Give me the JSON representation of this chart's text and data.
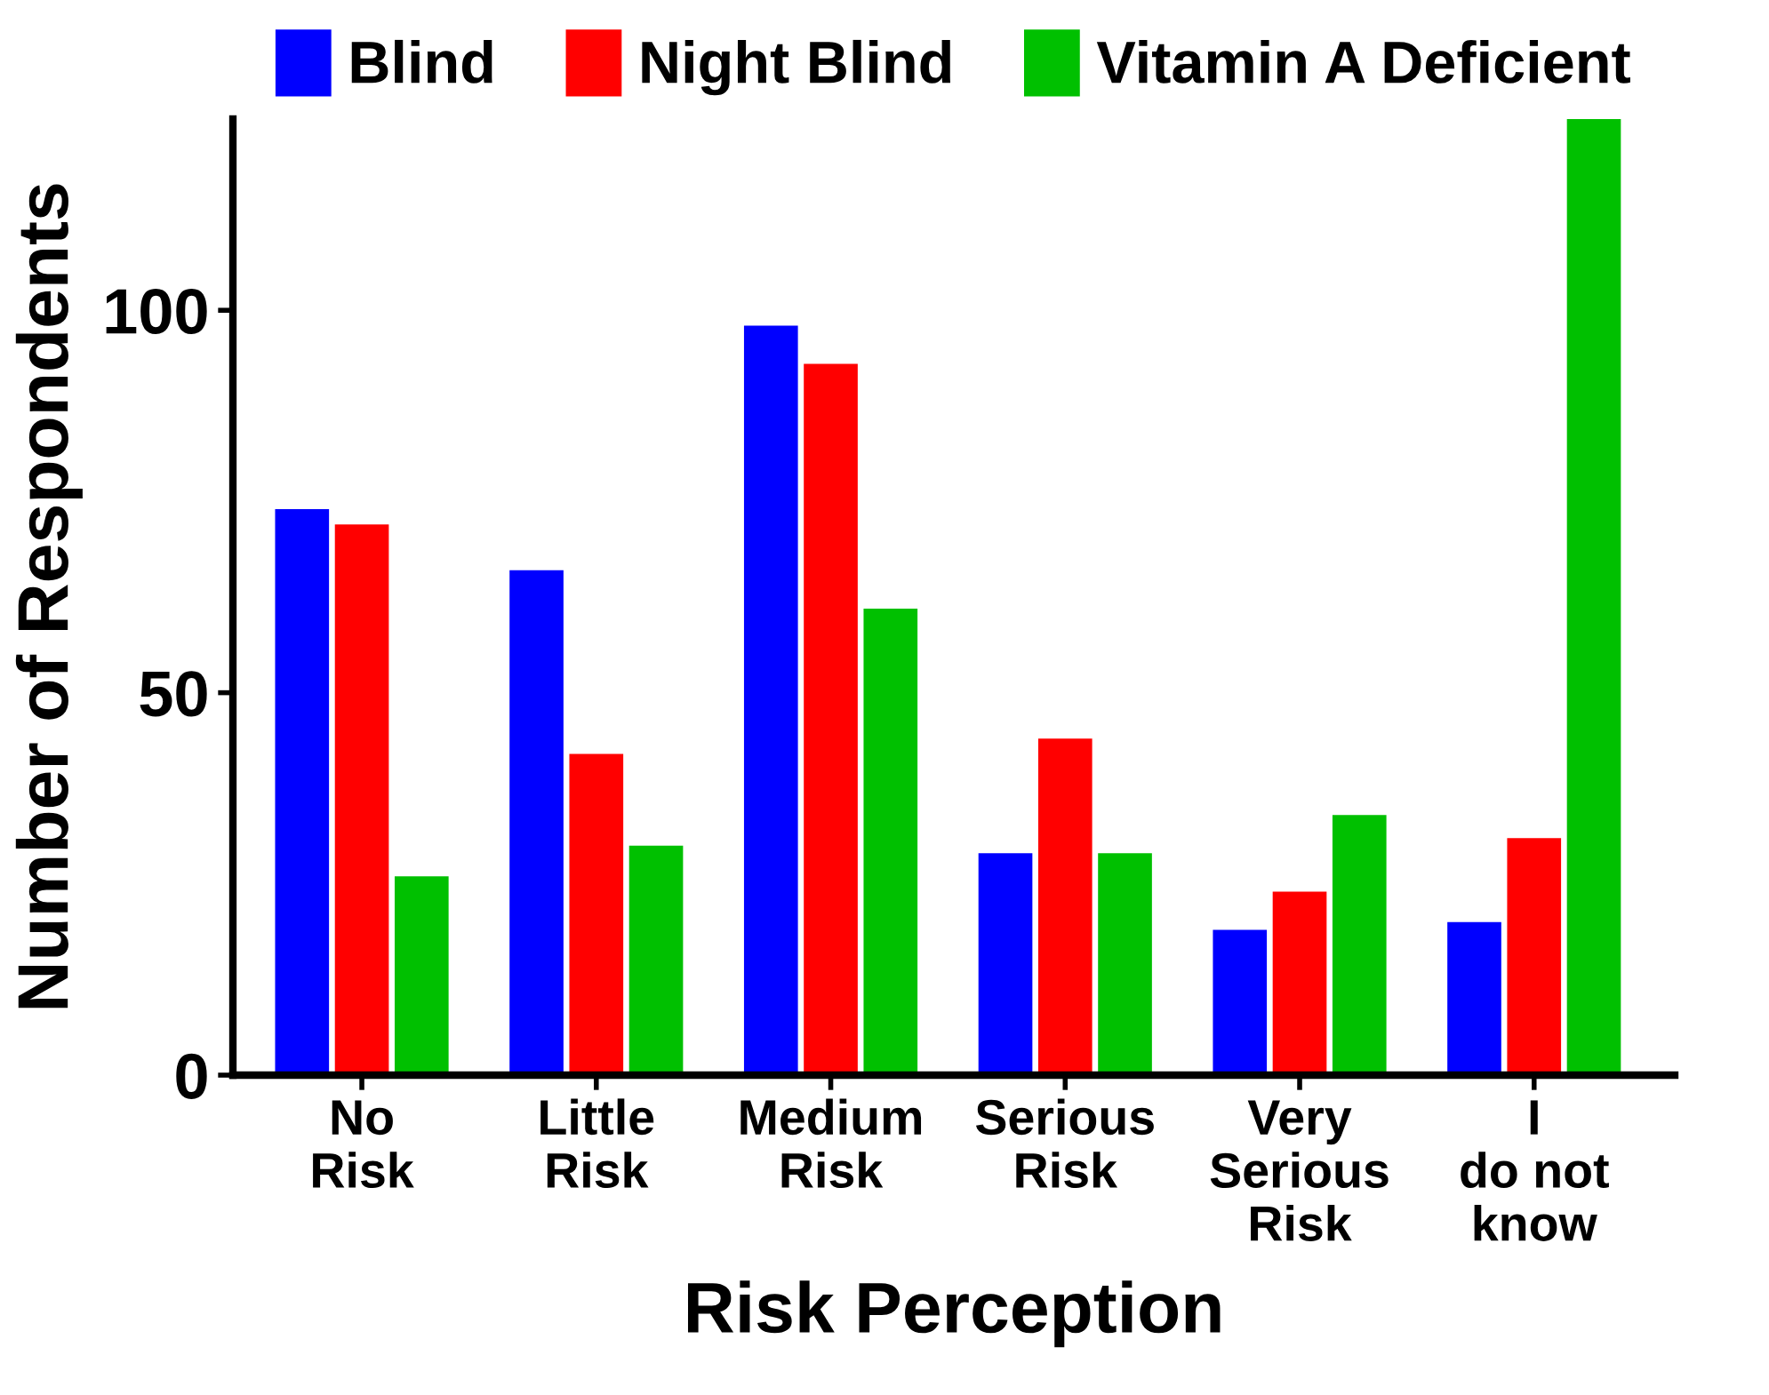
{
  "chart_data": {
    "type": "bar",
    "xlabel": "Risk Perception",
    "ylabel": "Number of Respondents",
    "categories": [
      "No\nRisk",
      "Little\nRisk",
      "Medium\nRisk",
      "Serious\nRisk",
      "Very\nSerious\nRisk",
      "I\ndo not\nknow"
    ],
    "series": [
      {
        "name": "Blind",
        "color": "#0000ff",
        "values": [
          74,
          66,
          98,
          29,
          19,
          20
        ]
      },
      {
        "name": "Night Blind",
        "color": "#ff0000",
        "values": [
          72,
          42,
          93,
          44,
          24,
          31
        ]
      },
      {
        "name": "Vitamin A Deficient",
        "color": "#00c000",
        "values": [
          26,
          30,
          61,
          29,
          34,
          125
        ]
      }
    ],
    "ylim": [
      0,
      125
    ],
    "yticks": [
      0,
      50,
      100
    ],
    "grid": false,
    "legend": "top"
  }
}
